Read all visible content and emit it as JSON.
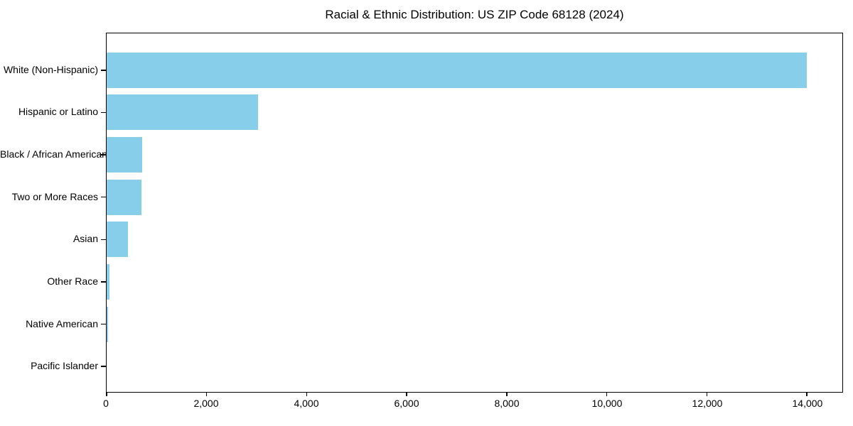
{
  "chart_data": {
    "type": "bar",
    "orientation": "horizontal",
    "title": "Racial & Ethnic Distribution: US ZIP Code 68128 (2024)",
    "categories": [
      "White (Non-Hispanic)",
      "Hispanic or Latino",
      "Black / African American",
      "Two or More Races",
      "Asian",
      "Other Race",
      "Native American",
      "Pacific Islander"
    ],
    "values": [
      14000,
      3030,
      710,
      690,
      430,
      50,
      35,
      0
    ],
    "xlabel": "",
    "ylabel": "",
    "xlim": [
      0,
      14710
    ],
    "x_ticks": [
      0,
      2000,
      4000,
      6000,
      8000,
      10000,
      12000,
      14000
    ],
    "x_tick_labels": [
      "0",
      "2,000",
      "4,000",
      "6,000",
      "8,000",
      "10,000",
      "12,000",
      "14,000"
    ],
    "grid": false,
    "legend": null,
    "bar_color": "#87CEEB"
  },
  "colors": {
    "bar": "#87CEEB",
    "axis": "#000000",
    "text": "#000000",
    "background": "#ffffff"
  }
}
